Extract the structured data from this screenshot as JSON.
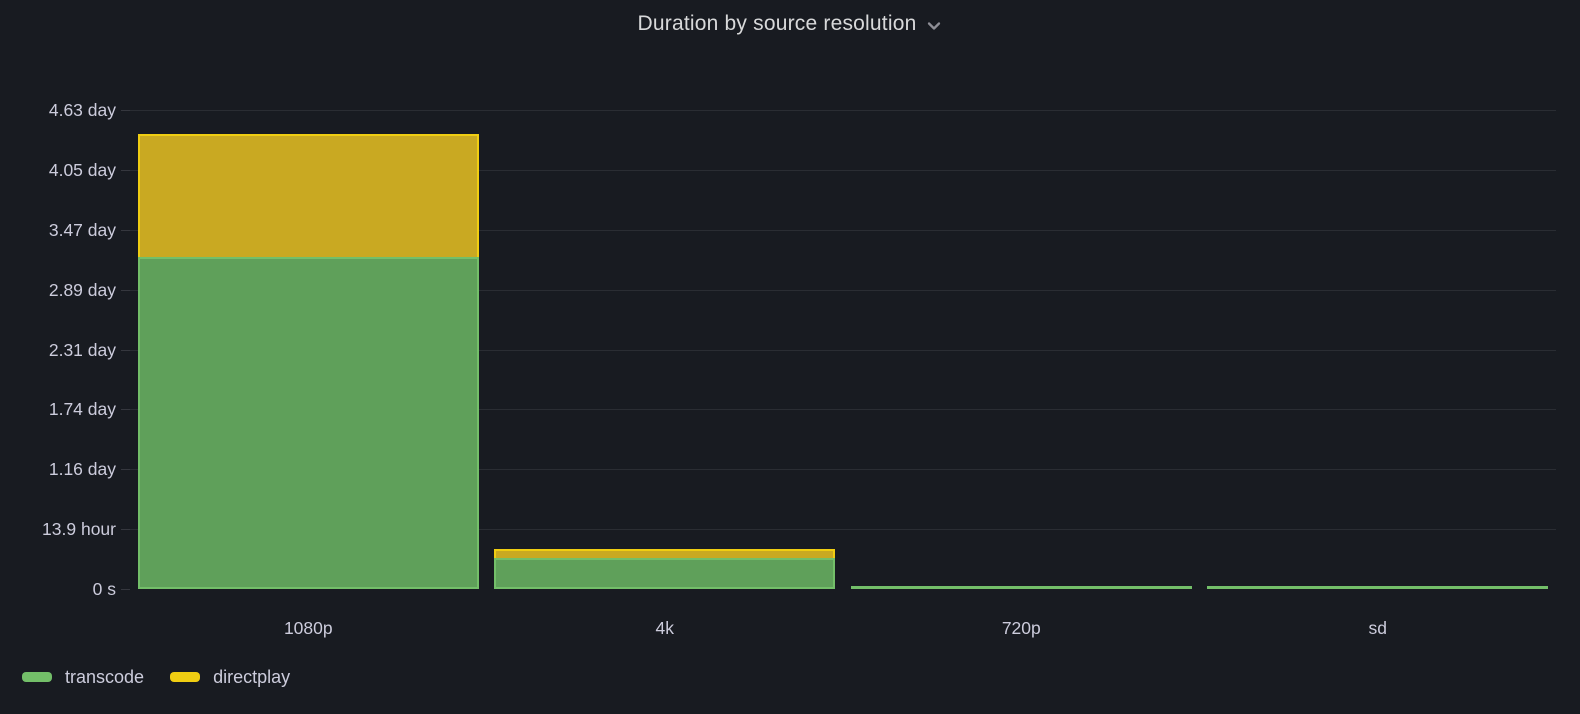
{
  "panel": {
    "title": "Duration by source resolution"
  },
  "chart_data": {
    "type": "bar",
    "stacked": true,
    "orientation": "vertical",
    "title": "Duration by source resolution",
    "categories": [
      "1080p",
      "4k",
      "720p",
      "sd"
    ],
    "series": [
      {
        "name": "transcode",
        "color": "#73BF69",
        "fill": "#5FA05A",
        "values_seconds": [
          277000,
          26000,
          2200,
          1300
        ]
      },
      {
        "name": "directplay",
        "color": "#F0CE12",
        "fill": "#C9A922",
        "values_seconds": [
          103000,
          7500,
          0,
          0
        ]
      }
    ],
    "y_axis": {
      "unit": "duration (s)",
      "min_seconds": 0,
      "max_seconds": 400000,
      "tick_step_seconds": 50000,
      "tick_labels_bottom_to_top": [
        "0 s",
        "13.9 hour",
        "1.16 day",
        "1.74 day",
        "2.31 day",
        "2.89 day",
        "3.47 day",
        "4.05 day",
        "4.63 day"
      ]
    },
    "x_axis": {
      "tick_labels": [
        "1080p",
        "4k",
        "720p",
        "sd"
      ]
    },
    "grid": true,
    "legend": {
      "position": "bottom-left",
      "items": [
        {
          "label": "transcode",
          "color": "#73BF69"
        },
        {
          "label": "directplay",
          "color": "#F0CE12"
        }
      ]
    },
    "colors": {
      "background": "#181b21",
      "text": "#ccccdc",
      "title_text": "#d8d9da",
      "gridline": "rgba(204,204,220,0.10)"
    }
  }
}
